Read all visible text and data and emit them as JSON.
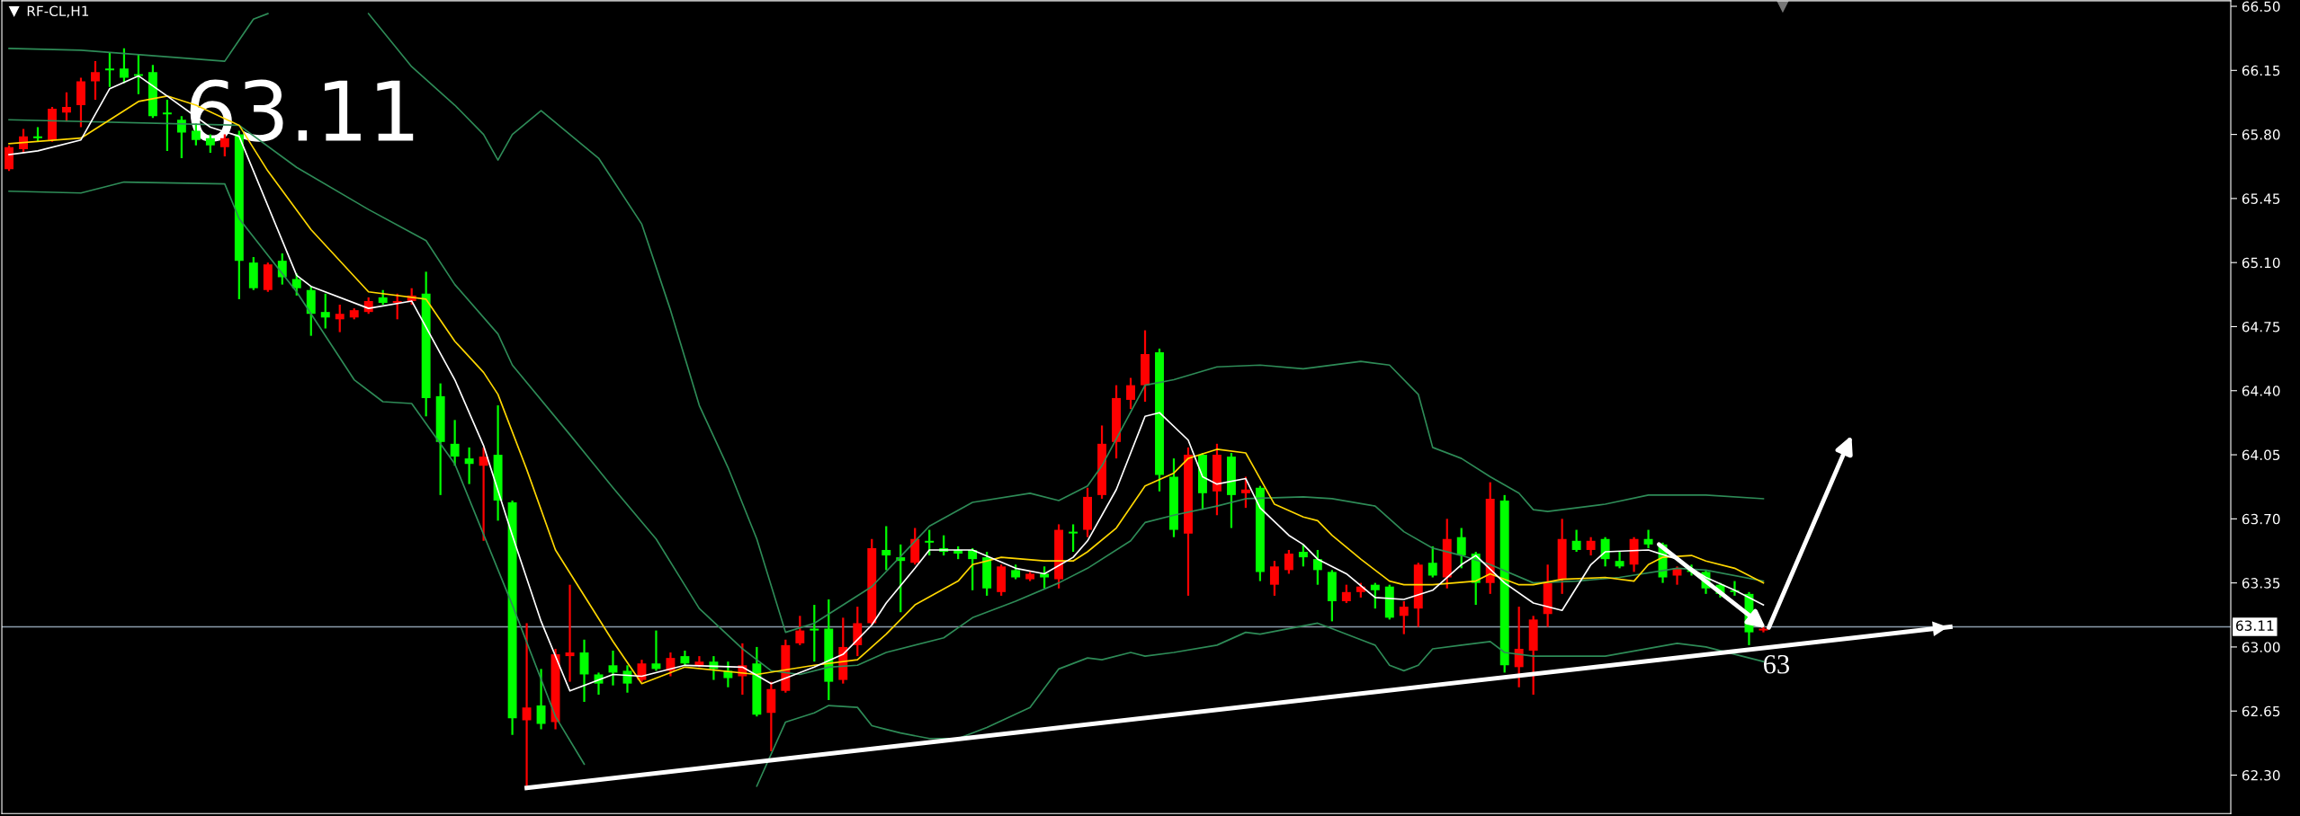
{
  "chart_data": {
    "type": "candlestick",
    "title": "RF-CL,H1",
    "categories": [
      null,
      null,
      null,
      null,
      null,
      null,
      null,
      null,
      null,
      null,
      null,
      null,
      null,
      null,
      null,
      null,
      null,
      null,
      null,
      null,
      null,
      null,
      null,
      null,
      null,
      null,
      null,
      null,
      null,
      null,
      null,
      null,
      null,
      null,
      null,
      null,
      null,
      null,
      null,
      null,
      null,
      null,
      null,
      null,
      null,
      null,
      null,
      null,
      null,
      null,
      null,
      null,
      null,
      null,
      null,
      null,
      null,
      null,
      null,
      null,
      null,
      null,
      null,
      null,
      null,
      null,
      null,
      null,
      null,
      null,
      null,
      null,
      null,
      null,
      null,
      null,
      null,
      null,
      null,
      null,
      null,
      null,
      null,
      null,
      null,
      null,
      null,
      null,
      null,
      null,
      null,
      null,
      null,
      null,
      null,
      null,
      null,
      null,
      null,
      null,
      null,
      null,
      null,
      null,
      null,
      null,
      null,
      null,
      null,
      null,
      null,
      null,
      null,
      null,
      null,
      null,
      null,
      null,
      null,
      null,
      null,
      null,
      null,
      null,
      null,
      null,
      null,
      null,
      null,
      null,
      null,
      null,
      null,
      null,
      null,
      null,
      null,
      null,
      null,
      null,
      null,
      null,
      null,
      null,
      null,
      null,
      null,
      null,
      null,
      null,
      null,
      null,
      null,
      null,
      null
    ],
    "ohlc": [
      [
        65.61,
        65.74,
        65.6,
        65.73
      ],
      [
        65.72,
        65.83,
        65.7,
        65.79
      ],
      [
        65.79,
        65.84,
        65.76,
        65.78
      ],
      [
        65.77,
        65.95,
        65.76,
        65.94
      ],
      [
        65.92,
        66.03,
        65.87,
        65.95
      ],
      [
        65.96,
        66.11,
        65.84,
        66.09
      ],
      [
        66.09,
        66.2,
        65.99,
        66.14
      ],
      [
        66.16,
        66.25,
        66.06,
        66.15
      ],
      [
        66.16,
        66.27,
        66.08,
        66.11
      ],
      [
        66.13,
        66.24,
        66.02,
        66.12
      ],
      [
        66.14,
        66.18,
        65.89,
        65.9
      ],
      [
        65.92,
        65.99,
        65.71,
        65.91
      ],
      [
        65.88,
        65.9,
        65.67,
        65.81
      ],
      [
        65.82,
        65.86,
        65.74,
        65.77
      ],
      [
        65.78,
        65.8,
        65.7,
        65.74
      ],
      [
        65.73,
        65.8,
        65.68,
        65.78
      ],
      [
        65.8,
        65.82,
        64.9,
        65.11
      ],
      [
        65.1,
        65.13,
        64.95,
        64.96
      ],
      [
        64.95,
        65.1,
        64.94,
        65.09
      ],
      [
        65.11,
        65.15,
        64.98,
        65.02
      ],
      [
        65.01,
        65.04,
        64.92,
        64.96
      ],
      [
        64.95,
        64.97,
        64.7,
        64.82
      ],
      [
        64.83,
        64.93,
        64.74,
        64.8
      ],
      [
        64.79,
        64.87,
        64.72,
        64.82
      ],
      [
        64.8,
        64.85,
        64.79,
        64.84
      ],
      [
        64.83,
        64.91,
        64.82,
        64.89
      ],
      [
        64.91,
        64.95,
        64.87,
        64.88
      ],
      [
        64.88,
        64.93,
        64.79,
        64.89
      ],
      [
        64.89,
        64.96,
        64.87,
        64.92
      ],
      [
        64.93,
        65.05,
        64.26,
        64.36
      ],
      [
        64.37,
        64.44,
        63.83,
        64.12
      ],
      [
        64.11,
        64.24,
        63.99,
        64.04
      ],
      [
        64.03,
        64.09,
        63.89,
        64.0
      ],
      [
        63.99,
        64.09,
        63.58,
        64.04
      ],
      [
        64.05,
        64.32,
        63.69,
        63.8
      ],
      [
        63.79,
        63.8,
        62.52,
        62.61
      ],
      [
        62.6,
        63.13,
        62.24,
        62.67
      ],
      [
        62.68,
        62.88,
        62.55,
        62.58
      ],
      [
        62.59,
        62.99,
        62.55,
        62.96
      ],
      [
        62.95,
        63.34,
        62.81,
        62.97
      ],
      [
        62.97,
        63.04,
        62.7,
        62.85
      ],
      [
        62.85,
        62.86,
        62.74,
        62.8
      ],
      [
        62.9,
        62.98,
        62.79,
        62.86
      ],
      [
        62.87,
        62.9,
        62.75,
        62.8
      ],
      [
        62.82,
        62.93,
        62.81,
        62.91
      ],
      [
        62.91,
        63.09,
        62.87,
        62.88
      ],
      [
        62.87,
        62.97,
        62.84,
        62.94
      ],
      [
        62.95,
        62.98,
        62.9,
        62.91
      ],
      [
        62.9,
        62.95,
        62.89,
        62.92
      ],
      [
        62.92,
        62.95,
        62.82,
        62.88
      ],
      [
        62.87,
        62.92,
        62.78,
        62.83
      ],
      [
        62.84,
        63.02,
        62.74,
        62.9
      ],
      [
        62.91,
        63.0,
        62.62,
        62.63
      ],
      [
        62.64,
        62.81,
        62.43,
        62.77
      ],
      [
        62.76,
        63.04,
        62.75,
        63.01
      ],
      [
        63.02,
        63.17,
        63.01,
        63.09
      ],
      [
        63.1,
        63.23,
        62.92,
        63.09
      ],
      [
        63.1,
        63.26,
        62.71,
        62.81
      ],
      [
        62.82,
        63.16,
        62.8,
        63.0
      ],
      [
        63.01,
        63.22,
        62.95,
        63.13
      ],
      [
        63.13,
        63.59,
        63.12,
        63.54
      ],
      [
        63.53,
        63.66,
        63.42,
        63.5
      ],
      [
        63.49,
        63.56,
        63.19,
        63.47
      ],
      [
        63.46,
        63.65,
        63.45,
        63.59
      ],
      [
        63.58,
        63.64,
        63.5,
        63.57
      ],
      [
        63.54,
        63.61,
        63.5,
        63.52
      ],
      [
        63.53,
        63.55,
        63.48,
        63.51
      ],
      [
        63.53,
        63.54,
        63.31,
        63.48
      ],
      [
        63.49,
        63.52,
        63.28,
        63.32
      ],
      [
        63.3,
        63.45,
        63.28,
        63.44
      ],
      [
        63.42,
        63.45,
        63.37,
        63.38
      ],
      [
        63.37,
        63.41,
        63.36,
        63.4
      ],
      [
        63.4,
        63.44,
        63.32,
        63.38
      ],
      [
        63.37,
        63.67,
        63.32,
        63.64
      ],
      [
        63.63,
        63.67,
        63.52,
        63.62
      ],
      [
        63.64,
        63.87,
        63.6,
        63.82
      ],
      [
        63.83,
        64.21,
        63.81,
        64.11
      ],
      [
        64.12,
        64.43,
        64.03,
        64.36
      ],
      [
        64.35,
        64.47,
        64.3,
        64.43
      ],
      [
        64.43,
        64.73,
        64.34,
        64.6
      ],
      [
        64.61,
        64.63,
        63.85,
        63.94
      ],
      [
        63.93,
        64.03,
        63.6,
        63.64
      ],
      [
        63.62,
        64.09,
        63.28,
        64.05
      ],
      [
        64.05,
        64.06,
        63.75,
        63.84
      ],
      [
        63.85,
        64.11,
        63.72,
        64.05
      ],
      [
        64.04,
        64.06,
        63.65,
        63.83
      ],
      [
        63.84,
        63.93,
        63.76,
        63.86
      ],
      [
        63.87,
        63.88,
        63.36,
        63.41
      ],
      [
        63.34,
        63.47,
        63.28,
        63.44
      ],
      [
        63.42,
        63.53,
        63.4,
        63.51
      ],
      [
        63.52,
        63.56,
        63.44,
        63.49
      ],
      [
        63.48,
        63.53,
        63.34,
        63.42
      ],
      [
        63.41,
        63.42,
        63.14,
        63.25
      ],
      [
        63.25,
        63.34,
        63.24,
        63.3
      ],
      [
        63.3,
        63.35,
        63.27,
        63.33
      ],
      [
        63.34,
        63.35,
        63.21,
        63.31
      ],
      [
        63.33,
        63.34,
        63.15,
        63.16
      ],
      [
        63.17,
        63.25,
        63.07,
        63.22
      ],
      [
        63.21,
        63.46,
        63.11,
        63.45
      ],
      [
        63.46,
        63.55,
        63.38,
        63.39
      ],
      [
        63.38,
        63.7,
        63.32,
        63.59
      ],
      [
        63.6,
        63.65,
        63.43,
        63.5
      ],
      [
        63.51,
        63.52,
        63.23,
        63.35
      ],
      [
        63.35,
        63.9,
        63.29,
        63.81
      ],
      [
        63.8,
        63.83,
        62.86,
        62.9
      ],
      [
        62.89,
        63.22,
        62.78,
        62.99
      ],
      [
        62.98,
        63.17,
        62.74,
        63.15
      ],
      [
        63.18,
        63.45,
        63.11,
        63.35
      ],
      [
        63.37,
        63.7,
        63.29,
        63.59
      ],
      [
        63.58,
        63.64,
        63.52,
        63.53
      ],
      [
        63.53,
        63.6,
        63.5,
        63.58
      ],
      [
        63.59,
        63.6,
        63.44,
        63.48
      ],
      [
        63.47,
        63.52,
        63.43,
        63.44
      ],
      [
        63.45,
        63.6,
        63.41,
        63.59
      ],
      [
        63.59,
        63.64,
        63.54,
        63.56
      ],
      [
        63.56,
        63.57,
        63.35,
        63.38
      ],
      [
        63.39,
        63.44,
        63.34,
        63.43
      ],
      [
        63.42,
        63.45,
        63.39,
        63.41
      ],
      [
        63.41,
        63.42,
        63.29,
        63.32
      ],
      [
        63.34,
        63.35,
        63.27,
        63.29
      ],
      [
        63.31,
        63.36,
        63.28,
        63.3
      ],
      [
        63.29,
        63.3,
        63.01,
        63.08
      ],
      [
        63.09,
        63.11,
        63.08,
        63.1
      ],
      null,
      null,
      null,
      null,
      null,
      null,
      null,
      null,
      null,
      null,
      null,
      null,
      null,
      null,
      null,
      null,
      null,
      null,
      null,
      null,
      null,
      null,
      null,
      null,
      null,
      null,
      null,
      null,
      null,
      null,
      null,
      null
    ],
    "colors": [
      "#ff0000",
      "#ff0000",
      "#00ff00",
      "#ff0000",
      "#ff0000",
      "#ff0000",
      "#ff0000",
      "#00ff00",
      "#00ff00",
      "#00ff00",
      "#00ff00",
      "#00ff00",
      "#00ff00",
      "#00ff00",
      "#00ff00",
      "#ff0000",
      "#00ff00",
      "#00ff00",
      "#ff0000",
      "#00ff00",
      "#00ff00",
      "#00ff00",
      "#00ff00",
      "#ff0000",
      "#ff0000",
      "#ff0000",
      "#00ff00",
      "#ff0000",
      "#ff0000",
      "#00ff00",
      "#00ff00",
      "#00ff00",
      "#00ff00",
      "#ff0000",
      "#00ff00",
      "#00ff00",
      "#ff0000",
      "#00ff00",
      "#ff0000",
      "#ff0000",
      "#00ff00",
      "#00ff00",
      "#00ff00",
      "#00ff00",
      "#ff0000",
      "#00ff00",
      "#ff0000",
      "#00ff00",
      "#ff0000",
      "#00ff00",
      "#00ff00",
      "#ff0000",
      "#00ff00",
      "#ff0000",
      "#ff0000",
      "#ff0000",
      "#00ff00",
      "#00ff00",
      "#ff0000",
      "#ff0000",
      "#ff0000",
      "#00ff00",
      "#00ff00",
      "#ff0000",
      "#00ff00",
      "#00ff00",
      "#00ff00",
      "#00ff00",
      "#00ff00",
      "#ff0000",
      "#00ff00",
      "#ff0000",
      "#00ff00",
      "#ff0000",
      "#00ff00",
      "#ff0000",
      "#ff0000",
      "#ff0000",
      "#ff0000",
      "#ff0000",
      "#00ff00",
      "#00ff00",
      "#ff0000",
      "#00ff00",
      "#ff0000",
      "#00ff00",
      "#ff0000",
      "#00ff00",
      "#ff0000",
      "#ff0000",
      "#00ff00",
      "#00ff00",
      "#00ff00",
      "#ff0000",
      "#ff0000",
      "#00ff00",
      "#00ff00",
      "#ff0000",
      "#ff0000",
      "#00ff00",
      "#ff0000",
      "#00ff00",
      "#00ff00",
      "#ff0000",
      "#00ff00",
      "#ff0000",
      "#ff0000",
      "#ff0000",
      "#ff0000",
      "#00ff00",
      "#ff0000",
      "#00ff00",
      "#00ff00",
      "#ff0000",
      "#00ff00",
      "#00ff00",
      "#ff0000",
      "#00ff00",
      "#00ff00",
      "#00ff00",
      "#00ff00",
      "#00ff00",
      "#ff0000",
      null,
      null,
      null,
      null,
      null,
      null,
      null,
      null,
      null,
      null,
      null,
      null,
      null,
      null,
      null,
      null,
      null,
      null,
      null,
      null,
      null,
      null,
      null,
      null,
      null,
      null,
      null,
      null,
      null,
      null,
      null,
      null
    ],
    "series": [
      {
        "type": "line",
        "color": "#2e8b57",
        "values": [
          66.27,
          null,
          null,
          null,
          null,
          66.26,
          null,
          null,
          null,
          null,
          null,
          null,
          null,
          null,
          null,
          66.2,
          null,
          66.43,
          66.46,
          null,
          null,
          null,
          null,
          null,
          null,
          null,
          null,
          null,
          null,
          null,
          null,
          null,
          null,
          null,
          null,
          null,
          null,
          null,
          null,
          null,
          null,
          null,
          null,
          null,
          null,
          null,
          null,
          null,
          null,
          null,
          null,
          null,
          null,
          null,
          null,
          null,
          null,
          null,
          null,
          null,
          null,
          null,
          null,
          null,
          null,
          null,
          null,
          null,
          null,
          null,
          null,
          null,
          null,
          null,
          null,
          null,
          null,
          null,
          null,
          null,
          null,
          null,
          null,
          null,
          null,
          null,
          null,
          null,
          null,
          null,
          null,
          null,
          null,
          null,
          null,
          null,
          null,
          null,
          null,
          null,
          null,
          null,
          null,
          null,
          null,
          null,
          null,
          null,
          null,
          null,
          null,
          null,
          null,
          null,
          null,
          null,
          null,
          null,
          null,
          null,
          null,
          null,
          null,
          null,
          null,
          null,
          null,
          null,
          null,
          null,
          null,
          null,
          null,
          null,
          null,
          null,
          null,
          null,
          null,
          null,
          null,
          null,
          null,
          null,
          null,
          null,
          null,
          null,
          null,
          null,
          null,
          null,
          null,
          null,
          null
        ]
      },
      {
        "type": "line",
        "color": "#2e8b57",
        "values": [
          null,
          null,
          null,
          null,
          null,
          null,
          null,
          null,
          null,
          null,
          null,
          null,
          null,
          null,
          null,
          null,
          null,
          null,
          null,
          null,
          null,
          null,
          null,
          null,
          null,
          66.46,
          null,
          null,
          66.17,
          null,
          null,
          65.96,
          null,
          65.8,
          65.66,
          65.8,
          null,
          65.93,
          null,
          65.8,
          null,
          65.67,
          null,
          null,
          65.31,
          null,
          64.84,
          null,
          64.32,
          null,
          63.98,
          null,
          63.59,
          null,
          63.08,
          null,
          63.13,
          null,
          null,
          null,
          63.33,
          null,
          null,
          null,
          63.66,
          null,
          null,
          63.79,
          null,
          null,
          null,
          63.84,
          null,
          63.8,
          null,
          63.88,
          63.99,
          null,
          null,
          64.43,
          null,
          64.46,
          null,
          null,
          64.53,
          null,
          null,
          64.54,
          null,
          null,
          64.52,
          null,
          null,
          null,
          64.56,
          null,
          64.54,
          null,
          64.38,
          64.09,
          null,
          64.03,
          null,
          63.93,
          null,
          63.84,
          63.75,
          63.74,
          null,
          null,
          null,
          63.78,
          null,
          null,
          63.83,
          null,
          null,
          null,
          63.83,
          null,
          null,
          null,
          63.81,
          null,
          null,
          null,
          null,
          null,
          null,
          null,
          null,
          null,
          null,
          null,
          null,
          null,
          null,
          null,
          null,
          null,
          null,
          null,
          null,
          null,
          null,
          null,
          null,
          null,
          null,
          null,
          null,
          null,
          null,
          null,
          null
        ]
      },
      {
        "type": "line",
        "color": "#2e8b57",
        "values": [
          65.88,
          null,
          null,
          null,
          null,
          null,
          null,
          null,
          null,
          null,
          null,
          null,
          null,
          null,
          null,
          null,
          65.85,
          null,
          null,
          null,
          65.62,
          null,
          null,
          null,
          null,
          65.39,
          null,
          null,
          null,
          65.22,
          null,
          64.98,
          null,
          null,
          64.71,
          64.54,
          null,
          null,
          null,
          64.16,
          null,
          null,
          63.87,
          null,
          null,
          63.59,
          null,
          null,
          63.21,
          null,
          null,
          62.99,
          null,
          62.87,
          null,
          62.85,
          null,
          62.89,
          null,
          62.9,
          null,
          62.97,
          null,
          null,
          null,
          63.05,
          null,
          63.16,
          null,
          null,
          63.25,
          null,
          null,
          63.35,
          null,
          63.43,
          null,
          null,
          63.58,
          63.68,
          null,
          63.72,
          null,
          null,
          63.77,
          null,
          63.81,
          null,
          null,
          null,
          63.82,
          null,
          63.81,
          null,
          null,
          63.77,
          null,
          63.63,
          null,
          63.54,
          null,
          63.5,
          null,
          63.45,
          null,
          null,
          63.35,
          null,
          null,
          63.36,
          null,
          null,
          63.38,
          null,
          null,
          null,
          63.43,
          null,
          63.42,
          null,
          null,
          null,
          63.36,
          null,
          null,
          null,
          null,
          null,
          null,
          null,
          null,
          null,
          null,
          null,
          null,
          null,
          null,
          null,
          null,
          null,
          null,
          null,
          null,
          null,
          null,
          null,
          null,
          null,
          null,
          null,
          null,
          null,
          null,
          null,
          null
        ]
      },
      {
        "type": "line",
        "color": "#2e8b57",
        "values": [
          65.49,
          null,
          null,
          null,
          null,
          65.48,
          null,
          null,
          65.54,
          null,
          null,
          null,
          null,
          null,
          null,
          65.53,
          65.34,
          null,
          null,
          null,
          64.94,
          null,
          null,
          null,
          64.46,
          null,
          64.34,
          null,
          64.33,
          null,
          null,
          64.0,
          null,
          null,
          null,
          63.23,
          null,
          null,
          62.62,
          null,
          62.36,
          null,
          null,
          null,
          null,
          null,
          null,
          null,
          null,
          null,
          null,
          null,
          null,
          null,
          null,
          null,
          null,
          null,
          null,
          null,
          null,
          null,
          null,
          null,
          null,
          null,
          null,
          null,
          null,
          null,
          null,
          null,
          null,
          null,
          null,
          null,
          null,
          null,
          null,
          null,
          null,
          null,
          null,
          null,
          null,
          null,
          null,
          null,
          null,
          null,
          null,
          null,
          null,
          null,
          null,
          null,
          null,
          null,
          null,
          null,
          null,
          null,
          null,
          null,
          null,
          null,
          null,
          null,
          null,
          null,
          null,
          null,
          null,
          null,
          null,
          null,
          null,
          null,
          null,
          null,
          null,
          null,
          null,
          null,
          null,
          null,
          null,
          null,
          null,
          null,
          null,
          null,
          null,
          null,
          null,
          null,
          null,
          null,
          null,
          null,
          null,
          null,
          null,
          null,
          null,
          null,
          null,
          null,
          null,
          null,
          null,
          null,
          null,
          null,
          null
        ]
      },
      {
        "type": "line",
        "color": "#2e8b57",
        "values": [
          null,
          null,
          null,
          null,
          null,
          null,
          null,
          null,
          null,
          null,
          null,
          null,
          null,
          null,
          null,
          null,
          null,
          null,
          null,
          null,
          null,
          null,
          null,
          null,
          null,
          null,
          null,
          null,
          null,
          null,
          null,
          null,
          null,
          null,
          null,
          null,
          null,
          null,
          null,
          null,
          null,
          null,
          null,
          null,
          null,
          null,
          null,
          null,
          null,
          null,
          null,
          null,
          62.24,
          null,
          62.59,
          null,
          62.64,
          62.68,
          null,
          62.67,
          62.57,
          62.55,
          62.53,
          null,
          62.5,
          null,
          62.5,
          null,
          62.56,
          null,
          null,
          62.67,
          null,
          62.88,
          null,
          62.94,
          62.93,
          null,
          62.97,
          62.95,
          null,
          62.97,
          null,
          null,
          63.01,
          null,
          63.08,
          63.07,
          null,
          null,
          null,
          63.13,
          63.1,
          null,
          null,
          63.01,
          62.9,
          62.87,
          62.9,
          62.99,
          null,
          63.01,
          null,
          63.03,
          62.97,
          null,
          62.95,
          null,
          null,
          null,
          null,
          62.95,
          null,
          null,
          null,
          null,
          63.02,
          null,
          63.0,
          null,
          null,
          null,
          62.92,
          null,
          null,
          null,
          null,
          null,
          null,
          null,
          null,
          null,
          null,
          null,
          null,
          null,
          null,
          null,
          null,
          null,
          null,
          null,
          null,
          null,
          null,
          null,
          null,
          null,
          null,
          null,
          null,
          null,
          null,
          null,
          null
        ]
      },
      {
        "type": "line",
        "color": "#ffd700",
        "values": [
          65.75,
          null,
          null,
          null,
          null,
          65.78,
          null,
          null,
          null,
          65.98,
          null,
          66.01,
          null,
          65.96,
          null,
          null,
          65.85,
          null,
          65.6,
          null,
          null,
          65.28,
          null,
          null,
          null,
          64.94,
          null,
          null,
          null,
          64.9,
          null,
          64.67,
          null,
          64.5,
          64.38,
          null,
          63.97,
          null,
          63.53,
          null,
          null,
          null,
          63.03,
          null,
          62.8,
          null,
          null,
          62.89,
          null,
          null,
          null,
          null,
          62.85,
          null,
          null,
          null,
          62.9,
          null,
          null,
          62.93,
          63.0,
          63.07,
          null,
          63.23,
          null,
          null,
          63.36,
          63.45,
          null,
          63.49,
          null,
          null,
          63.47,
          null,
          63.47,
          63.52,
          null,
          63.65,
          null,
          63.88,
          null,
          63.95,
          64.03,
          null,
          64.08,
          null,
          64.06,
          null,
          63.78,
          null,
          63.71,
          63.69,
          63.61,
          null,
          63.48,
          null,
          63.36,
          63.34,
          null,
          63.34,
          null,
          null,
          63.36,
          63.4,
          null,
          63.34,
          63.34,
          null,
          63.37,
          null,
          null,
          63.38,
          null,
          63.36,
          63.45,
          63.49,
          null,
          63.5,
          63.47,
          null,
          63.43,
          null,
          63.35,
          null,
          null,
          null,
          null,
          null,
          null,
          null,
          null,
          null,
          null,
          null,
          null,
          null,
          null,
          null,
          null,
          null,
          null,
          null,
          null,
          null,
          null,
          null,
          null,
          null,
          null,
          null,
          null,
          null,
          null,
          null,
          null
        ]
      },
      {
        "type": "line",
        "color": "#ffffff",
        "values": [
          65.69,
          null,
          65.71,
          null,
          null,
          65.77,
          null,
          66.05,
          null,
          66.12,
          null,
          66.01,
          null,
          null,
          65.84,
          null,
          65.79,
          null,
          null,
          null,
          65.03,
          64.97,
          null,
          null,
          null,
          64.85,
          null,
          null,
          64.89,
          null,
          null,
          64.46,
          null,
          64.1,
          null,
          63.61,
          null,
          63.14,
          null,
          62.76,
          null,
          null,
          62.85,
          null,
          62.84,
          null,
          null,
          62.9,
          null,
          null,
          null,
          62.89,
          null,
          62.8,
          null,
          null,
          62.89,
          null,
          62.96,
          null,
          63.12,
          63.24,
          null,
          63.43,
          63.53,
          null,
          null,
          63.53,
          null,
          null,
          63.43,
          null,
          63.4,
          null,
          63.49,
          63.58,
          null,
          63.86,
          null,
          64.26,
          64.28,
          null,
          64.13,
          63.93,
          63.89,
          null,
          63.92,
          63.76,
          null,
          63.61,
          63.56,
          63.48,
          null,
          63.4,
          null,
          63.27,
          null,
          63.26,
          null,
          63.31,
          null,
          63.45,
          63.5,
          null,
          63.35,
          null,
          63.24,
          null,
          63.2,
          null,
          63.45,
          63.52,
          null,
          null,
          63.53,
          null,
          63.48,
          null,
          63.38,
          null,
          63.31,
          null,
          63.23,
          null,
          null,
          null,
          null,
          null,
          null,
          null,
          null,
          null,
          null,
          null,
          null,
          null,
          null,
          null,
          null,
          null,
          null,
          null,
          null,
          null,
          null,
          null,
          null,
          null,
          null,
          null,
          null,
          null,
          null,
          null,
          null
        ]
      },
      {
        "type": "line",
        "color": "#ffffff",
        "values": [
          null,
          null,
          null,
          null,
          null,
          null,
          null,
          null,
          null,
          null,
          null,
          null,
          null,
          null,
          null,
          null,
          null,
          null,
          null,
          null,
          null,
          null,
          null,
          null,
          null,
          null,
          null,
          null,
          null,
          null,
          null,
          null,
          null,
          null,
          null,
          null,
          62.23,
          null,
          null,
          null,
          null,
          null,
          null,
          null,
          null,
          null,
          null,
          null,
          null,
          null,
          null,
          null,
          null,
          null,
          null,
          null,
          null,
          null,
          null,
          null,
          null,
          null,
          null,
          null,
          null,
          null,
          null,
          null,
          null,
          null,
          null,
          null,
          null,
          null,
          null,
          null,
          null,
          null,
          null,
          null,
          null,
          null,
          null,
          null,
          null,
          null,
          null,
          null,
          null,
          null,
          null,
          null,
          null,
          null,
          null,
          null,
          null,
          null,
          null,
          null,
          null,
          null,
          null,
          null,
          null,
          null,
          null,
          null,
          null,
          null,
          null,
          null,
          null,
          null,
          null,
          null,
          null,
          null,
          null,
          null,
          null,
          null,
          null,
          null,
          null,
          null,
          null,
          null,
          null,
          null,
          null,
          null,
          null,
          null,
          null,
          63.11,
          null,
          null,
          null,
          null,
          null,
          null,
          null,
          null,
          null,
          null,
          null,
          null,
          null,
          null,
          null,
          null,
          null,
          null,
          null
        ]
      }
    ],
    "ylim": [
      62.09,
      66.53
    ],
    "yticks": [
      {
        "value": 62.3,
        "label": "62.30"
      },
      {
        "value": 62.65,
        "label": "62.65"
      },
      {
        "value": 63.0,
        "label": "63.00"
      },
      {
        "value": 63.35,
        "label": "63.35"
      },
      {
        "value": 63.7,
        "label": "63.70"
      },
      {
        "value": 64.05,
        "label": "64.05"
      },
      {
        "value": 64.4,
        "label": "64.40"
      },
      {
        "value": 64.75,
        "label": "64.75"
      },
      {
        "value": 65.1,
        "label": "65.10"
      },
      {
        "value": 65.45,
        "label": "65.45"
      },
      {
        "value": 65.8,
        "label": "65.80"
      },
      {
        "value": 66.15,
        "label": "66.15"
      },
      {
        "value": 66.5,
        "label": "66.50"
      }
    ],
    "ref_lines": [
      {
        "axis": "y",
        "value": 63.11,
        "label": "63.11",
        "color": "#8c9cac"
      }
    ],
    "annotations": [
      "63.11",
      "63"
    ],
    "tick_labels": "y"
  }
}
